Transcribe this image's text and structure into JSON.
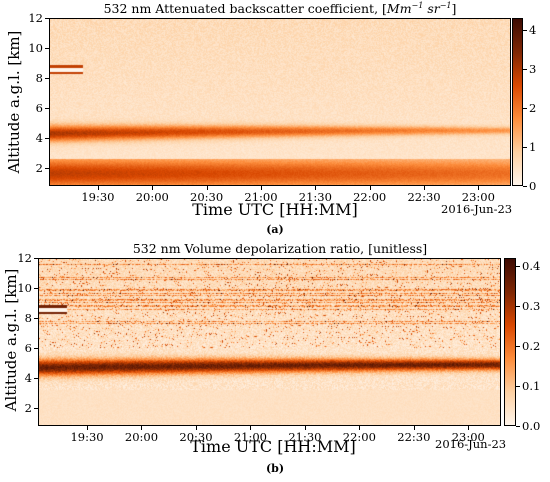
{
  "chart_data": [
    {
      "type": "heatmap",
      "title": "532 nm Attenuated backscatter coefficient, [",
      "title_units": "Mm",
      "title_units_exp1": "−1",
      "title_units_mid": " sr",
      "title_units_exp2": "−1",
      "title_units_end": "]",
      "xlabel": "Time UTC [HH:MM]",
      "ylabel": "Altitude a.g.l. [km]",
      "date": "2016-Jun-23",
      "caption": "(a)",
      "xticks": [
        "19:30",
        "20:00",
        "20:30",
        "21:00",
        "21:30",
        "22:00",
        "22:30",
        "23:00"
      ],
      "xtick_hours": [
        19.5,
        20.0,
        20.5,
        21.0,
        21.5,
        22.0,
        22.5,
        23.0
      ],
      "xlim_hours": [
        19.05,
        23.3
      ],
      "yticks": [
        "2",
        "4",
        "6",
        "8",
        "10",
        "12"
      ],
      "ytick_values": [
        2,
        4,
        6,
        8,
        10,
        12
      ],
      "ylim": [
        0.8,
        12
      ],
      "colorbar_ticks": [
        "0",
        "1",
        "2",
        "3",
        "4"
      ],
      "colorbar_values": [
        0,
        1,
        2,
        3,
        4
      ],
      "colorbar_range": [
        0,
        4.3
      ],
      "colormap": [
        "#fff5eb",
        "#fdd0a2",
        "#fd8d3c",
        "#d94801",
        "#7f2704",
        "#3d0b03"
      ],
      "layers": [
        {
          "name": "aerosol layer",
          "altitude_km": 4.3,
          "thickness_km": 0.9,
          "intensity": 2.6
        },
        {
          "name": "boundary layer",
          "altitude_km": 1.6,
          "thickness_km": 1.3,
          "intensity": 1.9
        }
      ]
    },
    {
      "type": "heatmap",
      "title": "532 nm Volume depolarization ratio, [unitless]",
      "xlabel": "Time UTC [HH:MM]",
      "ylabel": "Altitude a.g.l. [km]",
      "date": "2016-Jun-23",
      "caption": "(b)",
      "xticks": [
        "19:30",
        "20:00",
        "20:30",
        "21:00",
        "21:30",
        "22:00",
        "22:30",
        "23:00"
      ],
      "xtick_hours": [
        19.5,
        20.0,
        20.5,
        21.0,
        21.5,
        22.0,
        22.5,
        23.0
      ],
      "xlim_hours": [
        19.05,
        23.3
      ],
      "yticks": [
        "2",
        "4",
        "6",
        "8",
        "10",
        "12"
      ],
      "ytick_values": [
        2,
        4,
        6,
        8,
        10,
        12
      ],
      "ylim": [
        0.8,
        12
      ],
      "colorbar_ticks": [
        "0.0",
        "0.1",
        "0.2",
        "0.3",
        "0.4"
      ],
      "colorbar_values": [
        0.0,
        0.1,
        0.2,
        0.3,
        0.4
      ],
      "colorbar_range": [
        0,
        0.42
      ],
      "colormap": [
        "#fff5eb",
        "#fdd0a2",
        "#fd8d3c",
        "#d94801",
        "#7f2704",
        "#3d0b03"
      ],
      "layers": [
        {
          "name": "dust layer",
          "altitude_km": 4.7,
          "thickness_km": 1.1,
          "intensity": 0.32
        }
      ]
    }
  ]
}
